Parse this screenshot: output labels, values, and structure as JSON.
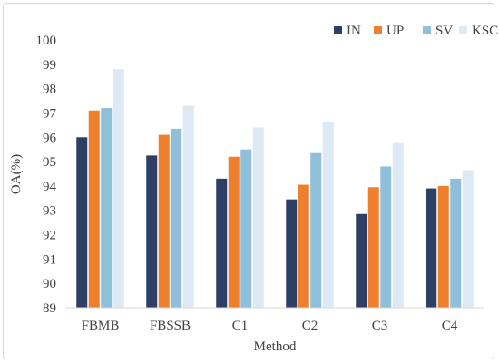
{
  "chart_data": {
    "type": "bar",
    "title": "",
    "xlabel": "Method",
    "ylabel": "OA(%)",
    "ylim": [
      89,
      100
    ],
    "yticks": [
      89,
      90,
      91,
      92,
      93,
      94,
      95,
      96,
      97,
      98,
      99,
      100
    ],
    "grid": false,
    "legend_position": "top-right",
    "categories": [
      "FBMB",
      "FBSSB",
      "C1",
      "C2",
      "C3",
      "C4"
    ],
    "series": [
      {
        "name": "IN",
        "color": "#2e3f66",
        "values": [
          96.0,
          95.25,
          94.3,
          93.45,
          92.85,
          93.9
        ]
      },
      {
        "name": "UP",
        "color": "#ee7f2d",
        "values": [
          97.1,
          96.1,
          95.2,
          94.05,
          93.95,
          94.0
        ]
      },
      {
        "name": "SV",
        "color": "#8fbfd9",
        "values": [
          97.2,
          96.35,
          95.5,
          95.35,
          94.8,
          94.3
        ]
      },
      {
        "name": "KSC",
        "color": "#dde9f5",
        "values": [
          98.8,
          97.3,
          96.4,
          96.65,
          95.8,
          94.65
        ]
      }
    ]
  }
}
